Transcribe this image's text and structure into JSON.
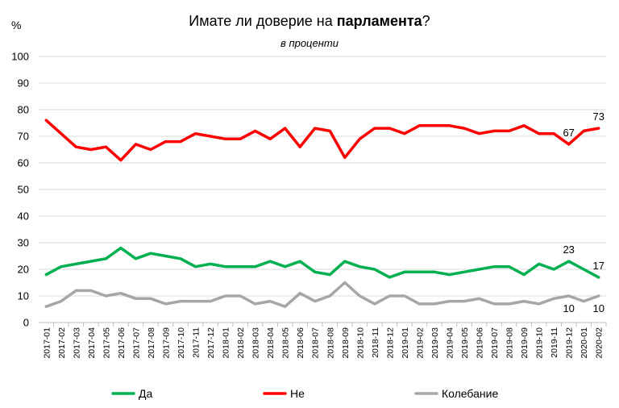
{
  "chart_data": {
    "type": "line",
    "title_parts": [
      {
        "text": "Имате ли доверие на ",
        "bold": false
      },
      {
        "text": "парламента",
        "bold": true
      },
      {
        "text": "?",
        "bold": false
      }
    ],
    "subtitle": "в проценти",
    "ylabel": "%",
    "ylim": [
      0,
      100
    ],
    "yticks": [
      0,
      10,
      20,
      30,
      40,
      50,
      60,
      70,
      80,
      90,
      100
    ],
    "categories": [
      "2017-01",
      "2017-02",
      "2017-03",
      "2017-04",
      "2017-05",
      "2017-06",
      "2017-07",
      "2017-08",
      "2017-09",
      "2017-10",
      "2017-11",
      "2017-12",
      "2018-01",
      "2018-02",
      "2018-03",
      "2018-04",
      "2018-05",
      "2018-06",
      "2018-07",
      "2018-08",
      "2018-09",
      "2018-10",
      "2018-11",
      "2018-12",
      "2019-01",
      "2019-02",
      "2019-03",
      "2019-04",
      "2019-05",
      "2019-06",
      "2019-07",
      "2019-08",
      "2019-09",
      "2019-10",
      "2019-11",
      "2019-12",
      "2020-01",
      "2020-02"
    ],
    "series": [
      {
        "name": "Да",
        "color": "#00b050",
        "values": [
          18,
          21,
          22,
          23,
          24,
          28,
          24,
          26,
          25,
          24,
          21,
          22,
          21,
          21,
          21,
          23,
          21,
          23,
          19,
          18,
          23,
          21,
          20,
          17,
          19,
          19,
          19,
          18,
          19,
          20,
          21,
          21,
          18,
          22,
          20,
          23,
          20,
          17
        ],
        "labels": [
          {
            "index": 35,
            "text": "23",
            "pos": "above"
          },
          {
            "index": 37,
            "text": "17",
            "pos": "above"
          }
        ]
      },
      {
        "name": "Не",
        "color": "#ff0000",
        "values": [
          76,
          71,
          66,
          65,
          66,
          61,
          67,
          65,
          68,
          68,
          71,
          70,
          69,
          69,
          72,
          69,
          73,
          66,
          73,
          72,
          62,
          69,
          73,
          73,
          71,
          74,
          74,
          74,
          73,
          71,
          72,
          72,
          74,
          71,
          71,
          67,
          72,
          73
        ],
        "labels": [
          {
            "index": 35,
            "text": "67",
            "pos": "above"
          },
          {
            "index": 37,
            "text": "73",
            "pos": "above"
          }
        ]
      },
      {
        "name": "Колебание",
        "color": "#a6a6a6",
        "values": [
          6,
          8,
          12,
          12,
          10,
          11,
          9,
          9,
          7,
          8,
          8,
          8,
          10,
          10,
          7,
          8,
          6,
          11,
          8,
          10,
          15,
          10,
          7,
          10,
          10,
          7,
          7,
          8,
          8,
          9,
          7,
          7,
          8,
          7,
          9,
          10,
          8,
          10
        ],
        "labels": [
          {
            "index": 35,
            "text": "10",
            "pos": "below"
          },
          {
            "index": 37,
            "text": "10",
            "pos": "below"
          }
        ]
      }
    ],
    "legend_position": "bottom"
  }
}
